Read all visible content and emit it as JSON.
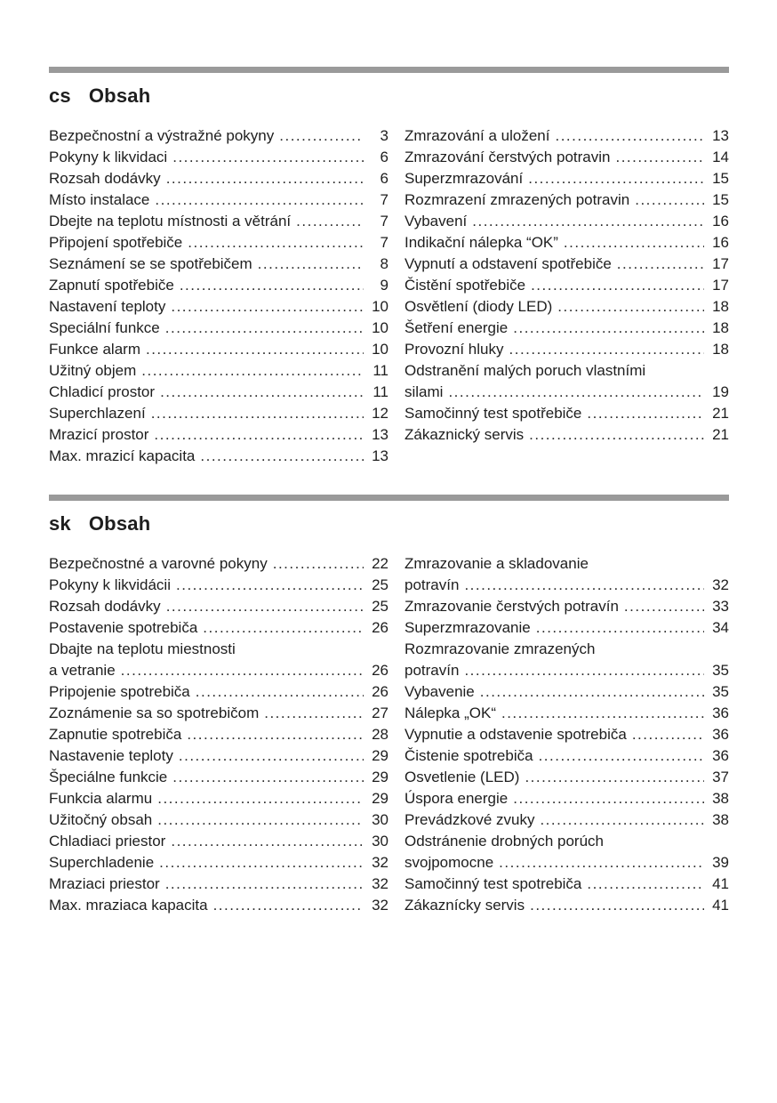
{
  "page": {
    "background": "#ffffff",
    "rule_color": "#9a9a9a",
    "text_color": "#1e1e1e"
  },
  "sections": [
    {
      "lang": "cs",
      "heading": "Obsah",
      "left": [
        {
          "title": "Bezpečnostní a výstražné pokyny",
          "page": "3"
        },
        {
          "title": "Pokyny k likvidaci",
          "page": "6"
        },
        {
          "title": "Rozsah dodávky",
          "page": "6"
        },
        {
          "title": "Místo instalace",
          "page": "7"
        },
        {
          "title": "Dbejte na teplotu místnosti a větrání",
          "page": "7"
        },
        {
          "title": "Připojení spotřebiče",
          "page": "7"
        },
        {
          "title": "Seznámení se se spotřebičem",
          "page": "8"
        },
        {
          "title": "Zapnutí spotřebiče",
          "page": "9"
        },
        {
          "title": "Nastavení teploty",
          "page": "10"
        },
        {
          "title": "Speciální funkce",
          "page": "10"
        },
        {
          "title": "Funkce alarm",
          "page": "10"
        },
        {
          "title": "Užitný objem",
          "page": "11"
        },
        {
          "title": "Chladicí prostor",
          "page": "11"
        },
        {
          "title": "Superchlazení",
          "page": "12"
        },
        {
          "title": "Mrazicí prostor",
          "page": "13"
        },
        {
          "title": "Max. mrazicí kapacita",
          "page": "13"
        }
      ],
      "right": [
        {
          "title": "Zmrazování a uložení",
          "page": "13"
        },
        {
          "title": "Zmrazování čerstvých potravin",
          "page": "14"
        },
        {
          "title": "Superzmrazování",
          "page": "15"
        },
        {
          "title": "Rozmrazení zmrazených potravin",
          "page": "15"
        },
        {
          "title": "Vybavení",
          "page": "16"
        },
        {
          "title": "Indikační nálepka “OK”",
          "page": "16"
        },
        {
          "title": "Vypnutí a odstavení spotřebiče",
          "page": "17"
        },
        {
          "title": "Čistění spotřebiče",
          "page": "17"
        },
        {
          "title": "Osvětlení (diody LED)",
          "page": "18"
        },
        {
          "title": "Šetření energie",
          "page": "18"
        },
        {
          "title": "Provozní hluky",
          "page": "18"
        },
        {
          "title": "Odstranění malých poruch vlastními",
          "title2": "silami",
          "page": "19"
        },
        {
          "title": "Samočinný test spotřebiče",
          "page": "21"
        },
        {
          "title": "Zákaznický servis",
          "page": "21"
        }
      ]
    },
    {
      "lang": "sk",
      "heading": "Obsah",
      "left": [
        {
          "title": "Bezpečnostné a varovné pokyny",
          "page": "22"
        },
        {
          "title": "Pokyny k likvidácii",
          "page": "25"
        },
        {
          "title": "Rozsah dodávky",
          "page": "25"
        },
        {
          "title": "Postavenie spotrebiča",
          "page": "26"
        },
        {
          "title": "Dbajte na teplotu miestnosti",
          "title2": "a vetranie",
          "page": "26"
        },
        {
          "title": "Pripojenie spotrebiča",
          "page": "26"
        },
        {
          "title": "Zoznámenie sa so spotrebičom",
          "page": "27"
        },
        {
          "title": "Zapnutie spotrebiča",
          "page": "28"
        },
        {
          "title": "Nastavenie teploty",
          "page": "29"
        },
        {
          "title": "Špeciálne funkcie",
          "page": "29"
        },
        {
          "title": "Funkcia alarmu",
          "page": "29"
        },
        {
          "title": "Užitočný obsah",
          "page": "30"
        },
        {
          "title": "Chladiaci priestor",
          "page": "30"
        },
        {
          "title": "Superchladenie",
          "page": "32"
        },
        {
          "title": "Mraziaci priestor",
          "page": "32"
        },
        {
          "title": "Max. mraziaca kapacita",
          "page": "32"
        }
      ],
      "right": [
        {
          "title": "Zmrazovanie a skladovanie",
          "title2": "potravín",
          "page": "32"
        },
        {
          "title": "Zmrazovanie čerstvých potravín",
          "page": "33"
        },
        {
          "title": "Superzmrazovanie",
          "page": "34"
        },
        {
          "title": "Rozmrazovanie zmrazených",
          "title2": "potravín",
          "page": "35"
        },
        {
          "title": "Vybavenie",
          "page": "35"
        },
        {
          "title": "Nálepka „OK“",
          "page": "36"
        },
        {
          "title": "Vypnutie a odstavenie spotrebiča",
          "page": "36"
        },
        {
          "title": "Čistenie spotrebiča",
          "page": "36"
        },
        {
          "title": "Osvetlenie (LED)",
          "page": "37"
        },
        {
          "title": "Úspora energie",
          "page": "38"
        },
        {
          "title": "Prevádzkové zvuky",
          "page": "38"
        },
        {
          "title": "Odstránenie drobných porúch",
          "title2": "svojpomocne",
          "page": "39"
        },
        {
          "title": "Samočinný test spotrebiča",
          "page": "41"
        },
        {
          "title": "Zákaznícky servis",
          "page": "41"
        }
      ]
    }
  ]
}
